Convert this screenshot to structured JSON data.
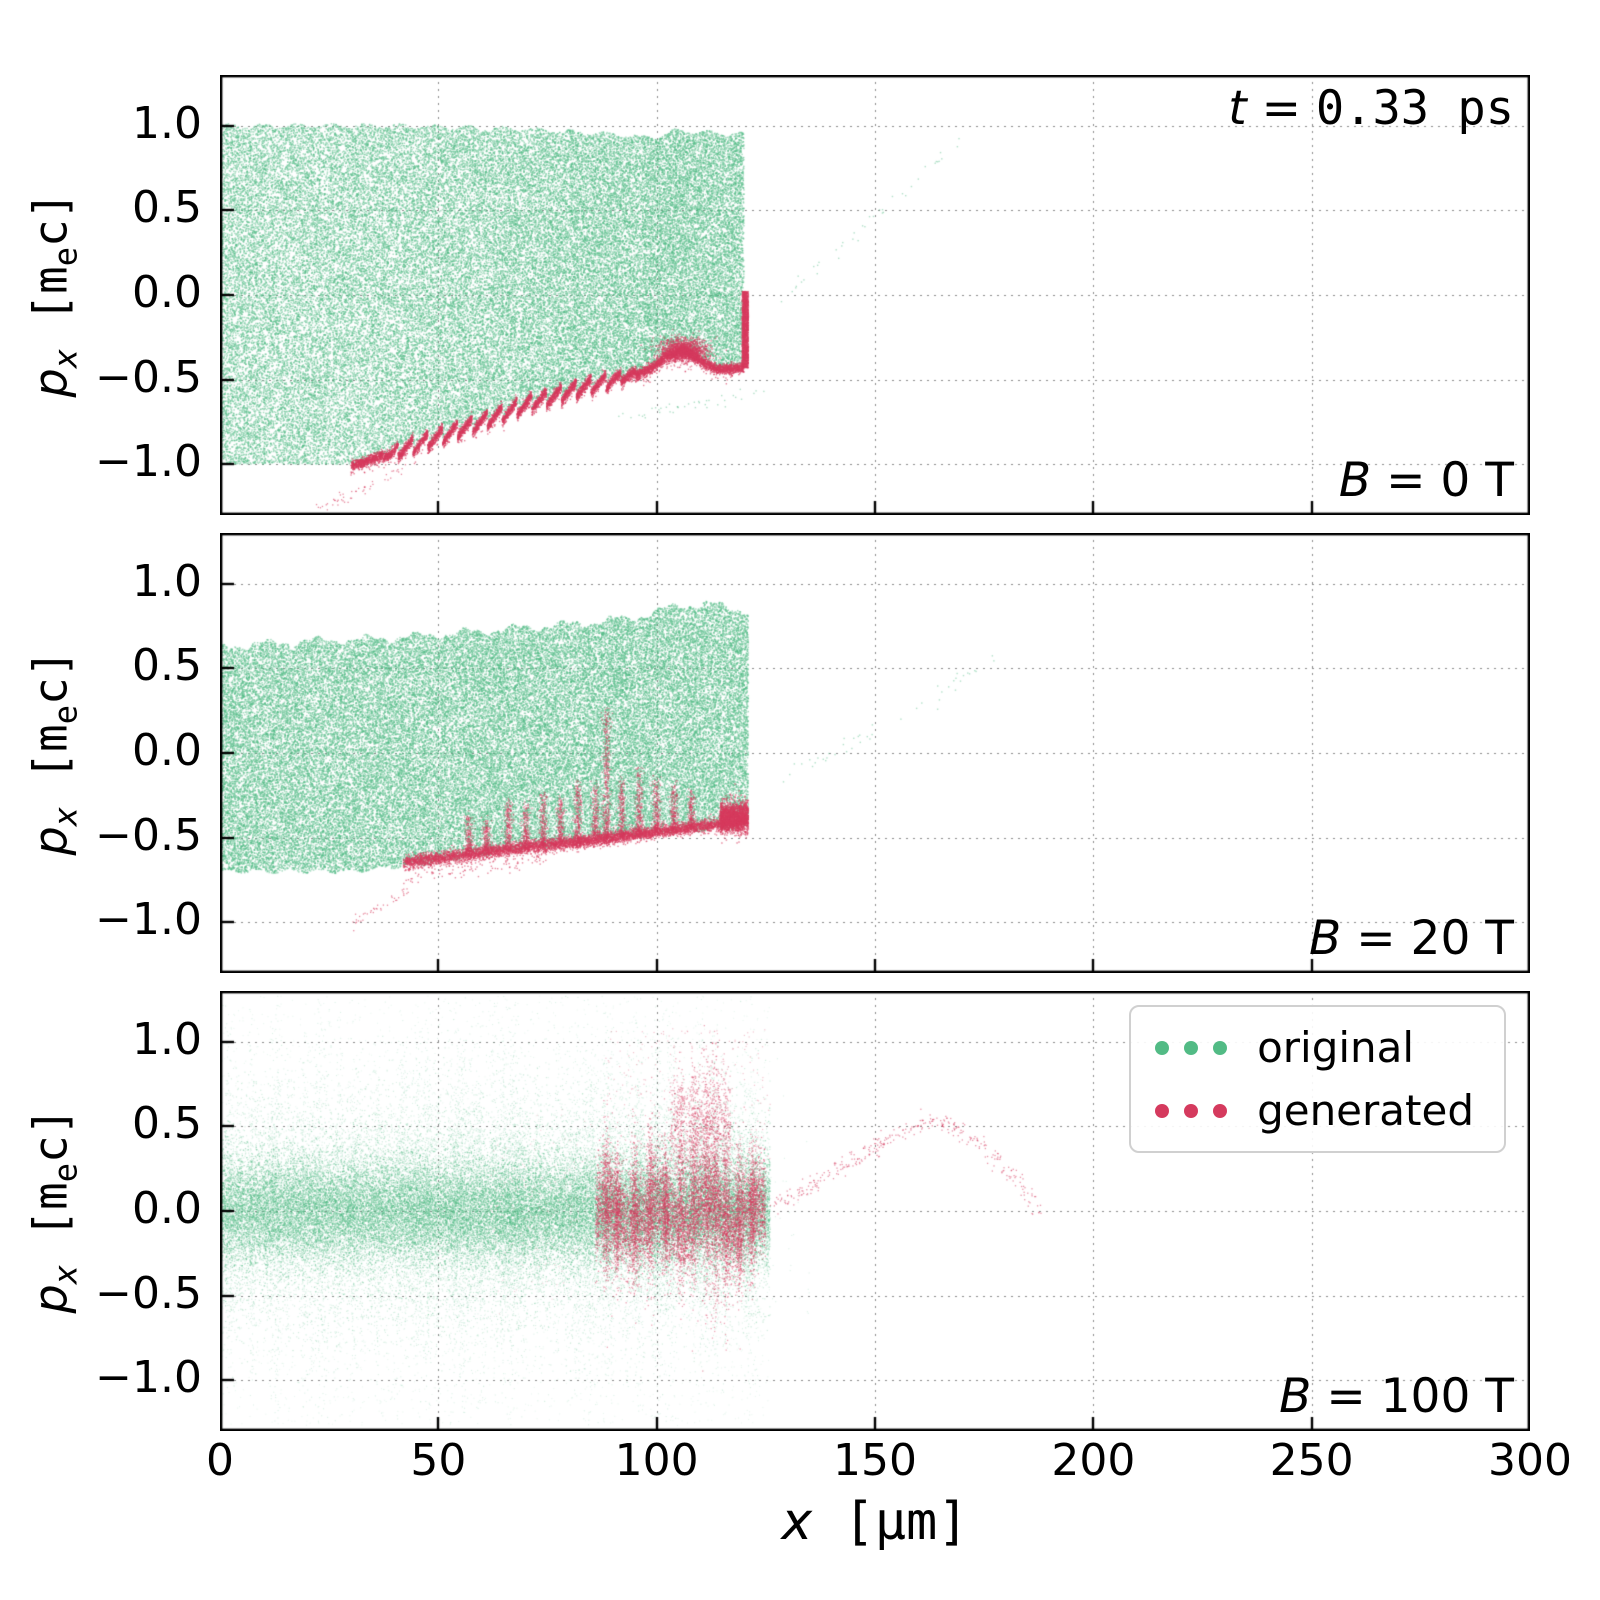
{
  "figure": {
    "time_annotation": {
      "var": "t",
      "eq": " = ",
      "value": "0.33 ps"
    },
    "xlabel": {
      "var": "x",
      "unit": " [μm]"
    },
    "ylabel": {
      "var": "p",
      "sub": "x",
      "unit_pre": " [m",
      "unit_sub": "e",
      "unit_post": "c]"
    },
    "x_ticks": [
      {
        "value": 0,
        "label": "0"
      },
      {
        "value": 50,
        "label": "50"
      },
      {
        "value": 100,
        "label": "100"
      },
      {
        "value": 150,
        "label": "150"
      },
      {
        "value": 200,
        "label": "200"
      },
      {
        "value": 250,
        "label": "250"
      },
      {
        "value": 300,
        "label": "300"
      }
    ],
    "y_ticks": [
      {
        "value": 1.0,
        "label": "1.0"
      },
      {
        "value": 0.5,
        "label": "0.5"
      },
      {
        "value": 0.0,
        "label": "0.0"
      },
      {
        "value": -0.5,
        "label": "−0.5"
      },
      {
        "value": -1.0,
        "label": "−1.0"
      }
    ],
    "panels": [
      {
        "name": "B = 0 T",
        "var": "B",
        "rest": " = 0 T"
      },
      {
        "name": "B = 20 T",
        "var": "B",
        "rest": " = 20 T"
      },
      {
        "name": "B = 100 T",
        "var": "B",
        "rest": " = 100 T"
      }
    ],
    "legend": {
      "items": [
        {
          "label": "original"
        },
        {
          "label": "generated"
        }
      ]
    },
    "colors": {
      "original": "#52bb85",
      "generated": "#d53a5e",
      "grid": "#777777",
      "axis": "#000000",
      "background": "#ffffff"
    }
  },
  "chart_data": {
    "type": "scatter",
    "title": "",
    "xlabel": "x [μm]",
    "ylabel": "p_x [m_e c]",
    "time_ps": 0.33,
    "x_range": [
      0,
      300
    ],
    "y_range": [
      -1.3,
      1.3
    ],
    "x_ticks": [
      0,
      50,
      100,
      150,
      200,
      250,
      300
    ],
    "y_ticks": [
      -1.0,
      -0.5,
      0.0,
      0.5,
      1.0
    ],
    "grid": true,
    "legend_position": "upper right of bottom panel",
    "series_colors": {
      "original": "#52bb85",
      "generated": "#d53a5e"
    },
    "panels": [
      {
        "magnetic_field_T": 0,
        "annotation": "B = 0 T",
        "original": {
          "x_extent": [
            0,
            120
          ],
          "top_boundary": [
            [
              0,
              1.0
            ],
            [
              40,
              1.0
            ],
            [
              70,
              0.98
            ],
            [
              90,
              0.95
            ],
            [
              100,
              0.93
            ],
            [
              104,
              0.97
            ],
            [
              112,
              0.96
            ],
            [
              120,
              0.95
            ]
          ],
          "bottom_boundary": [
            [
              0,
              -1.0
            ],
            [
              30,
              -1.0
            ],
            [
              40,
              -0.92
            ],
            [
              50,
              -0.83
            ],
            [
              60,
              -0.74
            ],
            [
              70,
              -0.64
            ],
            [
              80,
              -0.56
            ],
            [
              90,
              -0.49
            ],
            [
              98,
              -0.44
            ],
            [
              102,
              -0.36
            ],
            [
              106,
              -0.31
            ],
            [
              110,
              -0.38
            ],
            [
              114,
              -0.43
            ],
            [
              120,
              -0.42
            ]
          ],
          "stray_trails": [
            [
              [
                128,
                -0.05
              ],
              [
                170,
                0.92
              ]
            ],
            [
              [
                90,
                -0.73
              ],
              [
                125,
                -0.56
              ]
            ]
          ]
        },
        "generated": {
          "follows": "bottom_boundary",
          "x_extent": [
            30,
            120
          ],
          "sawtooth": {
            "x_range": [
              36,
              99
            ],
            "amplitude": 0.045,
            "wavelength": 3.4
          },
          "blob": {
            "x": 106,
            "p": -0.33,
            "sx": 2.6,
            "sp": 0.035
          },
          "front_edge": {
            "x": 120,
            "p_range": [
              -0.43,
              0.02
            ]
          },
          "stray_trails": [
            [
              [
                22,
                -1.28
              ],
              [
                42,
                -1.02
              ]
            ]
          ]
        }
      },
      {
        "magnetic_field_T": 20,
        "annotation": "B = 20 T",
        "original": {
          "x_extent": [
            0,
            121
          ],
          "top_boundary": [
            [
              0,
              0.63
            ],
            [
              20,
              0.66
            ],
            [
              40,
              0.68
            ],
            [
              60,
              0.72
            ],
            [
              80,
              0.76
            ],
            [
              95,
              0.8
            ],
            [
              105,
              0.87
            ],
            [
              112,
              0.88
            ],
            [
              121,
              0.84
            ]
          ],
          "bottom_boundary": [
            [
              0,
              -0.7
            ],
            [
              30,
              -0.7
            ],
            [
              45,
              -0.66
            ],
            [
              60,
              -0.6
            ],
            [
              75,
              -0.55
            ],
            [
              90,
              -0.5
            ],
            [
              105,
              -0.46
            ],
            [
              121,
              -0.44
            ]
          ],
          "stray_trails": [
            [
              [
                128,
                -0.18
              ],
              [
                178,
                0.55
              ]
            ]
          ]
        },
        "generated": {
          "base_curve": [
            [
              42,
              -0.64
            ],
            [
              55,
              -0.6
            ],
            [
              70,
              -0.55
            ],
            [
              85,
              -0.51
            ],
            [
              100,
              -0.46
            ],
            [
              112,
              -0.42
            ],
            [
              121,
              -0.4
            ]
          ],
          "spikes": [
            {
              "x": 57,
              "h": 0.22
            },
            {
              "x": 61,
              "h": 0.18
            },
            {
              "x": 66,
              "h": 0.28
            },
            {
              "x": 70,
              "h": 0.24
            },
            {
              "x": 74,
              "h": 0.3
            },
            {
              "x": 78,
              "h": 0.26
            },
            {
              "x": 82,
              "h": 0.34
            },
            {
              "x": 86,
              "h": 0.3
            },
            {
              "x": 88.5,
              "h": 0.75
            },
            {
              "x": 92,
              "h": 0.32
            },
            {
              "x": 96,
              "h": 0.38
            },
            {
              "x": 100,
              "h": 0.3
            },
            {
              "x": 104,
              "h": 0.26
            },
            {
              "x": 108,
              "h": 0.2
            }
          ],
          "blob": {
            "x_range": [
              114.5,
              121
            ],
            "p": -0.38,
            "sp": 0.045
          },
          "stray_trails": [
            [
              [
                30,
                -1.01
              ],
              [
                43,
                -0.82
              ]
            ]
          ]
        }
      },
      {
        "magnetic_field_T": 100,
        "annotation": "B = 100 T",
        "original": {
          "x_extent": [
            0,
            126
          ],
          "core_sigma": 0.155,
          "mid_sigma": 0.32,
          "streaks": {
            "count": 150,
            "sigma_range": [
              0.22,
              0.64
            ],
            "p_clip": 1.27
          }
        },
        "generated": {
          "cluster": {
            "x_range": [
              86,
              125
            ],
            "band_sigma": 0.14,
            "wiggle_amp": 0.08,
            "wiggle_freq": 0.55
          },
          "streaks": [
            {
              "x": 88.5,
              "c": 0,
              "s": 0.22
            },
            {
              "x": 91,
              "c": -0.05,
              "s": 0.18
            },
            {
              "x": 95,
              "c": 0,
              "s": 0.2
            },
            {
              "x": 98.5,
              "c": 0.05,
              "s": 0.24
            },
            {
              "x": 102,
              "c": 0,
              "s": 0.2
            },
            {
              "x": 105.5,
              "c": 0.1,
              "s": 0.3
            },
            {
              "x": 108.5,
              "c": 0.15,
              "s": 0.3
            },
            {
              "x": 111.5,
              "c": 0.15,
              "s": 0.35
            },
            {
              "x": 113.5,
              "c": 0.1,
              "s": 0.38
            },
            {
              "x": 116,
              "c": 0,
              "s": 0.28
            },
            {
              "x": 119,
              "c": -0.05,
              "s": 0.22
            },
            {
              "x": 122,
              "c": 0,
              "s": 0.18
            }
          ],
          "upper_tangle": {
            "x_range": [
              103,
              117
            ],
            "p": 0.5,
            "sp": 0.17
          },
          "arc": [
            [
              126,
              0.02
            ],
            [
              134,
              0.12
            ],
            [
              142,
              0.25
            ],
            [
              150,
              0.38
            ],
            [
              158,
              0.49
            ],
            [
              163,
              0.53
            ],
            [
              168,
              0.5
            ],
            [
              174,
              0.4
            ],
            [
              179,
              0.28
            ],
            [
              184,
              0.12
            ],
            [
              188,
              -0.02
            ]
          ]
        }
      }
    ]
  }
}
